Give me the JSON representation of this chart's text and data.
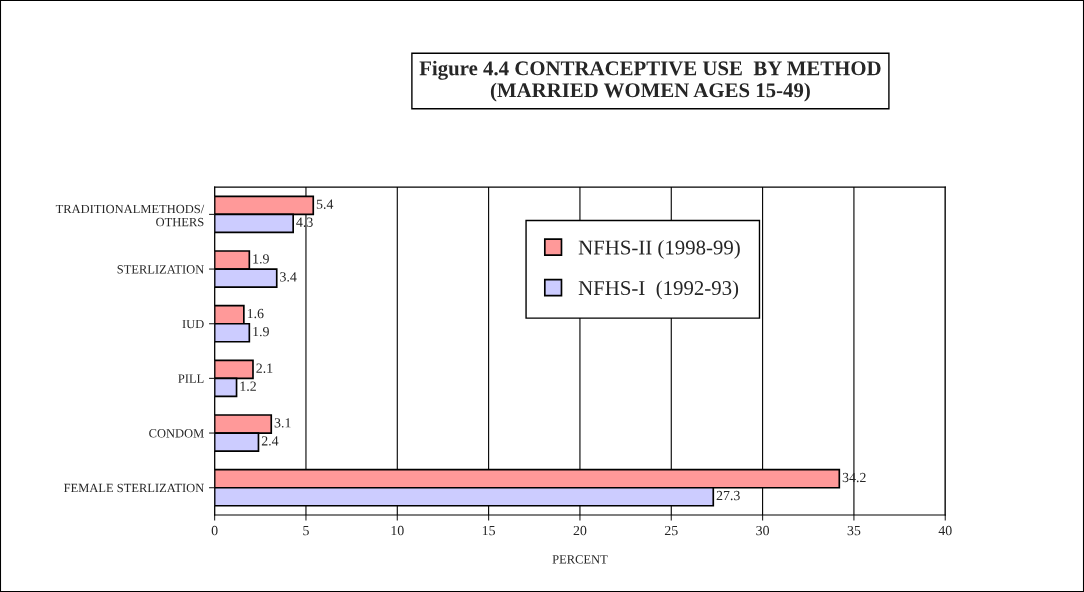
{
  "chart_data": {
    "type": "bar",
    "orientation": "horizontal",
    "title": "Figure 4.4 CONTRACEPTIVE USE  BY METHOD\n(MARRIED WOMEN AGES 15-49)",
    "xlabel": "PERCENT",
    "categories": [
      "TRADITIONALMETHODS/\nOTHERS",
      "STERLIZATION",
      "IUD",
      "PILL",
      "CONDOM",
      "FEMALE STERLIZATION"
    ],
    "series": [
      {
        "name": "NFHS-II (1998-99)",
        "color": "#ff9999",
        "values": [
          5.4,
          1.9,
          1.6,
          2.1,
          3.1,
          34.2
        ]
      },
      {
        "name": "NFHS-I  (1992-93)",
        "color": "#ccccff",
        "values": [
          4.3,
          3.4,
          1.9,
          1.2,
          2.4,
          27.3
        ]
      }
    ],
    "xlim": [
      0,
      40
    ],
    "xticks": [
      0,
      5,
      10,
      15,
      20,
      25,
      30,
      35,
      40
    ],
    "grid": "x",
    "legend": "top right",
    "data_labels": true
  }
}
